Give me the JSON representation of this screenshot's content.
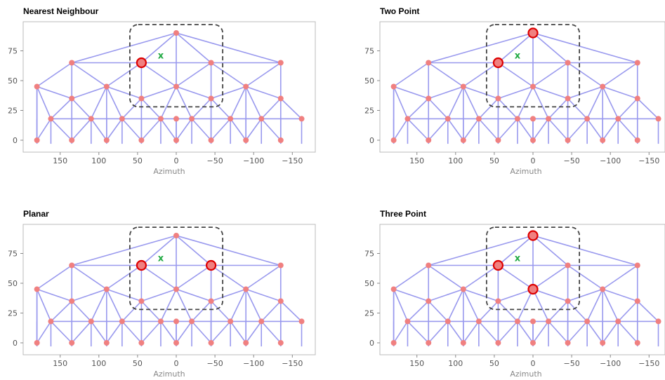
{
  "chart_data": [
    {
      "type": "scatter",
      "title": "Nearest Neighbour",
      "xlabel": "Azimuth",
      "ylabel": "",
      "xlim": [
        185,
        -168
      ],
      "ylim": [
        -5,
        97
      ],
      "x_inverted": true,
      "xticks": [
        150,
        100,
        50,
        0,
        -50,
        -100,
        -150
      ],
      "xtick_labels": [
        "150",
        "100",
        "50",
        "0",
        "−50",
        "−100",
        "−150"
      ],
      "yticks": [
        0,
        25,
        50,
        75
      ],
      "yticks_labels": [
        "0",
        "25",
        "50",
        "75"
      ],
      "target": {
        "azimuth": 20,
        "elevation": 71,
        "label": "x"
      },
      "highlight_box": {
        "azimuth": [
          60,
          -60
        ],
        "elevation": [
          28,
          97
        ]
      },
      "highlighted_nodes": [
        9
      ]
    },
    {
      "type": "scatter",
      "title": "Two Point",
      "xlabel": "Azimuth",
      "ylabel": "",
      "xlim": [
        185,
        -168
      ],
      "ylim": [
        -5,
        97
      ],
      "x_inverted": true,
      "xticks": [
        150,
        100,
        50,
        0,
        -50,
        -100,
        -150
      ],
      "xtick_labels": [
        "150",
        "100",
        "50",
        "0",
        "−50",
        "−100",
        "−150"
      ],
      "yticks": [
        0,
        25,
        50,
        75
      ],
      "yticks_labels": [
        "0",
        "25",
        "50",
        "75"
      ],
      "target": {
        "azimuth": 20,
        "elevation": 71,
        "label": "x"
      },
      "highlight_box": {
        "azimuth": [
          60,
          -60
        ],
        "elevation": [
          28,
          97
        ]
      },
      "highlighted_nodes": [
        9,
        0
      ]
    },
    {
      "type": "scatter",
      "title": "Planar",
      "xlabel": "Azimuth",
      "ylabel": "",
      "xlim": [
        185,
        -168
      ],
      "ylim": [
        -5,
        97
      ],
      "x_inverted": true,
      "xticks": [
        150,
        100,
        50,
        0,
        -50,
        -100,
        -150
      ],
      "xtick_labels": [
        "150",
        "100",
        "50",
        "0",
        "−50",
        "−100",
        "−150"
      ],
      "yticks": [
        0,
        25,
        50,
        75
      ],
      "yticks_labels": [
        "0",
        "25",
        "50",
        "75"
      ],
      "target": {
        "azimuth": 20,
        "elevation": 71,
        "label": "x"
      },
      "highlight_box": {
        "azimuth": [
          60,
          -60
        ],
        "elevation": [
          28,
          97
        ]
      },
      "highlighted_nodes": [
        9,
        4
      ]
    },
    {
      "type": "scatter",
      "title": "Three Point",
      "xlabel": "Azimuth",
      "ylabel": "",
      "xlim": [
        185,
        -168
      ],
      "ylim": [
        -5,
        97
      ],
      "x_inverted": true,
      "xticks": [
        150,
        100,
        50,
        0,
        -50,
        -100,
        -150
      ],
      "xtick_labels": [
        "150",
        "100",
        "50",
        "0",
        "−50",
        "−100",
        "−150"
      ],
      "yticks": [
        0,
        25,
        50,
        75
      ],
      "yticks_labels": [
        "0",
        "25",
        "50",
        "75"
      ],
      "target": {
        "azimuth": 20,
        "elevation": 71,
        "label": "x"
      },
      "highlight_box": {
        "azimuth": [
          60,
          -60
        ],
        "elevation": [
          28,
          97
        ]
      },
      "highlighted_nodes": [
        9,
        0,
        1
      ]
    }
  ],
  "mesh": {
    "nodes": [
      [
        0,
        90
      ],
      [
        0,
        45
      ],
      [
        45,
        35
      ],
      [
        -45,
        35
      ],
      [
        -45,
        65
      ],
      [
        -90,
        45
      ],
      [
        90,
        45
      ],
      [
        135,
        65
      ],
      [
        135,
        35
      ],
      [
        45,
        65
      ],
      [
        -135,
        65
      ],
      [
        -135,
        35
      ],
      [
        180,
        45
      ],
      [
        0,
        18
      ],
      [
        20,
        18
      ],
      [
        -20,
        18
      ],
      [
        70,
        18
      ],
      [
        110,
        18
      ],
      [
        162,
        18
      ],
      [
        -70,
        18
      ],
      [
        -110,
        18
      ],
      [
        -162,
        18
      ],
      [
        180,
        0
      ],
      [
        135,
        0
      ],
      [
        90,
        0
      ],
      [
        45,
        0
      ],
      [
        0,
        0
      ],
      [
        -45,
        0
      ],
      [
        -90,
        0
      ],
      [
        -135,
        0
      ]
    ],
    "edges": [
      [
        0,
        1
      ],
      [
        0,
        9
      ],
      [
        0,
        4
      ],
      [
        0,
        7
      ],
      [
        0,
        10
      ],
      [
        7,
        9
      ],
      [
        9,
        4
      ],
      [
        4,
        10
      ],
      [
        9,
        1
      ],
      [
        4,
        1
      ],
      [
        7,
        12
      ],
      [
        7,
        8
      ],
      [
        7,
        6
      ],
      [
        9,
        6
      ],
      [
        9,
        2
      ],
      [
        4,
        5
      ],
      [
        4,
        3
      ],
      [
        10,
        5
      ],
      [
        10,
        11
      ],
      [
        12,
        8
      ],
      [
        8,
        6
      ],
      [
        6,
        2
      ],
      [
        2,
        1
      ],
      [
        1,
        3
      ],
      [
        3,
        5
      ],
      [
        5,
        11
      ],
      [
        11,
        21
      ],
      [
        12,
        18
      ],
      [
        12,
        22
      ],
      [
        18,
        17
      ],
      [
        17,
        16
      ],
      [
        16,
        14
      ],
      [
        14,
        13
      ],
      [
        13,
        15
      ],
      [
        15,
        19
      ],
      [
        19,
        20
      ],
      [
        20,
        21
      ],
      [
        8,
        18
      ],
      [
        8,
        17
      ],
      [
        6,
        17
      ],
      [
        6,
        16
      ],
      [
        2,
        16
      ],
      [
        2,
        14
      ],
      [
        1,
        14
      ],
      [
        1,
        15
      ],
      [
        3,
        15
      ],
      [
        3,
        19
      ],
      [
        5,
        19
      ],
      [
        5,
        20
      ],
      [
        11,
        20
      ],
      [
        18,
        22
      ],
      [
        18,
        23
      ],
      [
        17,
        23
      ],
      [
        17,
        24
      ],
      [
        16,
        24
      ],
      [
        16,
        25
      ],
      [
        14,
        25
      ],
      [
        14,
        26
      ],
      [
        13,
        26
      ],
      [
        15,
        26
      ],
      [
        15,
        27
      ],
      [
        19,
        27
      ],
      [
        19,
        28
      ],
      [
        20,
        28
      ],
      [
        20,
        29
      ],
      [
        8,
        23
      ],
      [
        6,
        24
      ],
      [
        2,
        25
      ],
      [
        3,
        27
      ],
      [
        5,
        28
      ],
      [
        11,
        29
      ],
      [
        12,
        22
      ],
      [
        21,
        -1
      ]
    ],
    "bottom_drops_azimuth": [
      180,
      162,
      135,
      110,
      90,
      70,
      45,
      20,
      0,
      -20,
      -45,
      -70,
      -90,
      -110,
      -135,
      -162
    ]
  }
}
